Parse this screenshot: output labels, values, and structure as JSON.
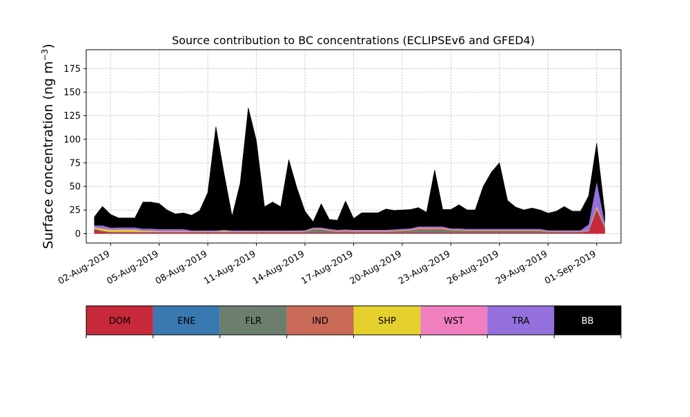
{
  "chart_data": {
    "type": "area",
    "stacked": true,
    "title": "Source contribution to BC concentrations (ECLIPSEv6 and GFED4)",
    "ylabel": "Surface concentration (ng m",
    "ylabel_sup": "−3",
    "ylabel_close": ")",
    "xlim": [
      "2019-07-31T12:00",
      "2019-09-02T12:00"
    ],
    "ylim": [
      -10,
      195
    ],
    "yticks": [
      0,
      25,
      50,
      75,
      100,
      125,
      150,
      175
    ],
    "xticks": [
      "2019-08-02",
      "2019-08-05",
      "2019-08-08",
      "2019-08-11",
      "2019-08-14",
      "2019-08-17",
      "2019-08-20",
      "2019-08-23",
      "2019-08-26",
      "2019-08-29",
      "2019-09-01"
    ],
    "xtick_labels": [
      "02-Aug-2019",
      "05-Aug-2019",
      "08-Aug-2019",
      "11-Aug-2019",
      "14-Aug-2019",
      "17-Aug-2019",
      "20-Aug-2019",
      "23-Aug-2019",
      "26-Aug-2019",
      "29-Aug-2019",
      "01-Sep-2019"
    ],
    "grid": true,
    "legend_placement": "below",
    "x": [
      "2019-08-01T00:00",
      "2019-08-01T12:00",
      "2019-08-02T00:00",
      "2019-08-02T12:00",
      "2019-08-03T00:00",
      "2019-08-03T12:00",
      "2019-08-04T00:00",
      "2019-08-04T12:00",
      "2019-08-05T00:00",
      "2019-08-05T12:00",
      "2019-08-06T00:00",
      "2019-08-06T12:00",
      "2019-08-07T00:00",
      "2019-08-07T12:00",
      "2019-08-08T00:00",
      "2019-08-08T12:00",
      "2019-08-09T00:00",
      "2019-08-09T12:00",
      "2019-08-10T00:00",
      "2019-08-10T12:00",
      "2019-08-11T00:00",
      "2019-08-11T12:00",
      "2019-08-12T00:00",
      "2019-08-12T12:00",
      "2019-08-13T00:00",
      "2019-08-13T12:00",
      "2019-08-14T00:00",
      "2019-08-14T12:00",
      "2019-08-15T00:00",
      "2019-08-15T12:00",
      "2019-08-16T00:00",
      "2019-08-16T12:00",
      "2019-08-17T00:00",
      "2019-08-17T12:00",
      "2019-08-18T00:00",
      "2019-08-18T12:00",
      "2019-08-19T00:00",
      "2019-08-19T12:00",
      "2019-08-20T00:00",
      "2019-08-20T12:00",
      "2019-08-21T00:00",
      "2019-08-21T12:00",
      "2019-08-22T00:00",
      "2019-08-22T12:00",
      "2019-08-23T00:00",
      "2019-08-23T12:00",
      "2019-08-24T00:00",
      "2019-08-24T12:00",
      "2019-08-25T00:00",
      "2019-08-25T12:00",
      "2019-08-26T00:00",
      "2019-08-26T12:00",
      "2019-08-27T00:00",
      "2019-08-27T12:00",
      "2019-08-28T00:00",
      "2019-08-28T12:00",
      "2019-08-29T00:00",
      "2019-08-29T12:00",
      "2019-08-30T00:00",
      "2019-08-30T12:00",
      "2019-08-31T00:00",
      "2019-08-31T12:00",
      "2019-09-01T00:00",
      "2019-09-01T12:00"
    ],
    "series": [
      {
        "name": "DOM",
        "color": "#c62a3a",
        "values": [
          4,
          2,
          1,
          1,
          1,
          1,
          1,
          1,
          1,
          1,
          1,
          1,
          1,
          1,
          1,
          1,
          1,
          1,
          1,
          1,
          1,
          1,
          1,
          1,
          1,
          1,
          1,
          1,
          1,
          1,
          1,
          1,
          1,
          1,
          1,
          1,
          1,
          1,
          1,
          1,
          1,
          1,
          1,
          1,
          1,
          1,
          1,
          1,
          1,
          1,
          1,
          1,
          1,
          1,
          1,
          1,
          1,
          1,
          1,
          1,
          1,
          2,
          25,
          6
        ]
      },
      {
        "name": "ENE",
        "color": "#3a78b0",
        "values": [
          0.3,
          0.3,
          0.3,
          0.3,
          0.3,
          0.3,
          0.3,
          0.3,
          0.3,
          0.3,
          0.3,
          0.3,
          0.3,
          0.3,
          0.3,
          0.3,
          0.3,
          0.3,
          0.3,
          0.3,
          0.3,
          0.3,
          0.3,
          0.3,
          0.3,
          0.3,
          0.3,
          0.3,
          0.3,
          0.3,
          0.3,
          0.3,
          0.3,
          0.3,
          0.3,
          0.3,
          0.3,
          0.3,
          0.3,
          0.3,
          0.3,
          0.3,
          0.3,
          0.3,
          0.3,
          0.3,
          0.3,
          0.3,
          0.3,
          0.3,
          0.3,
          0.3,
          0.3,
          0.3,
          0.3,
          0.3,
          0.3,
          0.3,
          0.3,
          0.3,
          0.3,
          0.3,
          0.5,
          0.3
        ]
      },
      {
        "name": "FLR",
        "color": "#6c7f6e",
        "values": [
          0.5,
          0.5,
          0.3,
          0.3,
          0.3,
          0.3,
          0.3,
          0.3,
          0.3,
          0.3,
          0.3,
          0.3,
          0.3,
          0.3,
          0.3,
          0.3,
          0.3,
          0.3,
          0.3,
          0.3,
          0.3,
          0.3,
          0.3,
          0.3,
          0.3,
          0.3,
          0.5,
          3,
          3,
          1.5,
          0.5,
          1,
          0.5,
          0.5,
          0.5,
          0.5,
          0.5,
          1,
          1.5,
          2,
          3,
          3,
          3,
          3,
          2,
          2,
          1.5,
          1.5,
          1.5,
          1.5,
          1.5,
          1.5,
          1.5,
          1.5,
          1.5,
          1.5,
          0.5,
          0.5,
          0.5,
          0.5,
          0.5,
          0.5,
          0.5,
          0.5
        ]
      },
      {
        "name": "IND",
        "color": "#c96a58",
        "values": [
          0.5,
          0.5,
          0.3,
          0.5,
          0.5,
          0.5,
          0.3,
          0.3,
          0.3,
          0.3,
          0.3,
          0.3,
          0.3,
          0.3,
          0.3,
          0.3,
          0.3,
          0.3,
          0.3,
          0.3,
          0.3,
          0.3,
          0.3,
          0.3,
          0.3,
          0.3,
          0.3,
          0.5,
          0.5,
          0.5,
          0.5,
          0.5,
          0.5,
          0.5,
          0.5,
          0.5,
          0.5,
          0.5,
          0.5,
          0.5,
          1,
          1,
          1,
          1,
          0.5,
          0.5,
          0.5,
          0.5,
          0.5,
          0.5,
          0.5,
          0.5,
          0.5,
          0.5,
          0.5,
          0.5,
          0.3,
          0.3,
          0.3,
          0.3,
          0.3,
          0.3,
          1,
          0.5
        ]
      },
      {
        "name": "SHP",
        "color": "#e6d02e",
        "values": [
          1,
          2,
          2,
          2,
          2,
          2,
          1,
          1,
          0.5,
          0.5,
          0.5,
          0.5,
          0.3,
          0.3,
          0.3,
          0.3,
          1,
          0.3,
          0.3,
          0.3,
          0.3,
          0.3,
          0.3,
          0.3,
          0.3,
          0.3,
          0.3,
          0.3,
          0.3,
          0.3,
          0.3,
          0.3,
          0.3,
          0.3,
          0.3,
          0.3,
          0.3,
          0.3,
          0.3,
          0.3,
          0.3,
          0.3,
          0.3,
          0.3,
          0.3,
          0.3,
          0.3,
          0.3,
          0.3,
          0.3,
          0.3,
          0.3,
          0.3,
          0.3,
          0.3,
          0.3,
          0.3,
          0.3,
          0.3,
          0.3,
          0.3,
          0.5,
          2,
          0.5
        ]
      },
      {
        "name": "WST",
        "color": "#f07fbf",
        "values": [
          0.5,
          0.5,
          0.5,
          0.5,
          0.5,
          0.5,
          0.5,
          0.5,
          0.5,
          0.5,
          0.5,
          0.5,
          0.3,
          0.3,
          0.3,
          0.3,
          0.3,
          0.3,
          0.3,
          0.3,
          0.3,
          0.3,
          0.3,
          0.3,
          0.3,
          0.3,
          0.3,
          0.5,
          0.5,
          0.5,
          0.5,
          0.5,
          0.5,
          0.5,
          0.5,
          0.5,
          0.5,
          0.5,
          0.5,
          0.5,
          1,
          1,
          1,
          1,
          0.5,
          0.5,
          0.5,
          0.5,
          0.5,
          0.5,
          0.5,
          0.5,
          0.5,
          0.5,
          0.5,
          0.5,
          0.3,
          0.3,
          0.3,
          0.3,
          0.3,
          0.3,
          1,
          0.5
        ]
      },
      {
        "name": "TRA",
        "color": "#9370db",
        "values": [
          2,
          3,
          2,
          2,
          2,
          2,
          2,
          2,
          2,
          2,
          2,
          2,
          1,
          1,
          1,
          1,
          1,
          1,
          1,
          1,
          1,
          1,
          1,
          1,
          1,
          1,
          1,
          1,
          1,
          1,
          1,
          1,
          1,
          1,
          1,
          1,
          1,
          1,
          1,
          1,
          1,
          1,
          1,
          1,
          1,
          1,
          1,
          1,
          1,
          1,
          1,
          1,
          1,
          1,
          1,
          1,
          1,
          1,
          1,
          1,
          1,
          6,
          26,
          4
        ]
      },
      {
        "name": "BB",
        "color": "#000000",
        "values": [
          9,
          20,
          14,
          10,
          10,
          10,
          28,
          28,
          27,
          20,
          16,
          17,
          16,
          21,
          40,
          110,
          60,
          15,
          50,
          130,
          95,
          25,
          30,
          25,
          75,
          45,
          20,
          6,
          25,
          10,
          10,
          30,
          12,
          18,
          18,
          18,
          22,
          20,
          20,
          20,
          20,
          15,
          60,
          18,
          20,
          25,
          20,
          20,
          45,
          60,
          70,
          30,
          23,
          20,
          22,
          20,
          18,
          20,
          25,
          20,
          20,
          30,
          40,
          10
        ]
      }
    ]
  }
}
